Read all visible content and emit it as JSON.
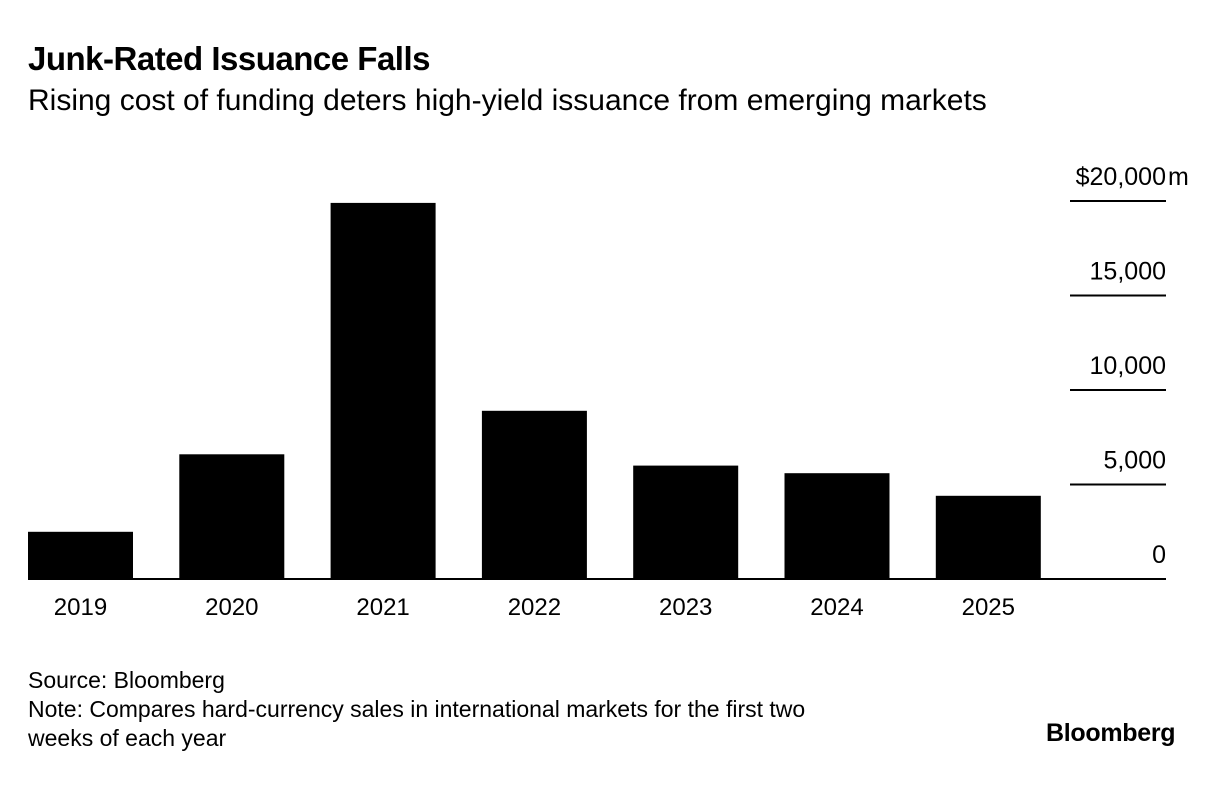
{
  "chart_data": {
    "type": "bar",
    "title": "Junk-Rated Issuance Falls",
    "subtitle": "Rising cost of funding deters high-yield issuance from emerging markets",
    "categories": [
      "2019",
      "2020",
      "2021",
      "2022",
      "2023",
      "2024",
      "2025"
    ],
    "values": [
      2500,
      6600,
      19900,
      8900,
      6000,
      5600,
      4400
    ],
    "yticks": [
      0,
      5000,
      10000,
      15000,
      20000
    ],
    "ytick_labels": [
      "0",
      "5,000",
      "10,000",
      "15,000",
      "$20,000"
    ],
    "yunit": "m",
    "ylim": [
      0,
      20000
    ],
    "bar_color": "#000000",
    "axis_side": "right"
  },
  "footer": {
    "source": "Source: Bloomberg",
    "note_line1": "Note: Compares hard-currency sales in international markets for the first two",
    "note_line2": "weeks of each year",
    "brand": "Bloomberg"
  }
}
